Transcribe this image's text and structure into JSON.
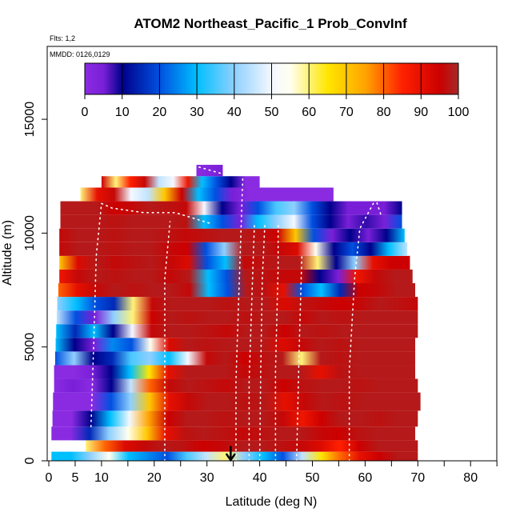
{
  "chart_data": {
    "type": "heatmap",
    "title": "ATOM2 Northeast_Pacific_1 Prob_ConvInf",
    "subtitles": [
      "Flts: 1,2",
      "MMDD: 0126,0129"
    ],
    "xlabel": "Latitude (deg N)",
    "ylabel": "Altitude (m)",
    "xlim": [
      0,
      85
    ],
    "ylim": [
      0,
      17500
    ],
    "x_tick_labels": [
      "0",
      "5",
      "10",
      "20",
      "30",
      "40",
      "50",
      "60",
      "70",
      "80"
    ],
    "x_ticks": [
      0,
      5,
      10,
      20,
      30,
      40,
      50,
      60,
      70,
      80
    ],
    "x_minor_ticks": [
      15,
      25,
      35,
      45,
      55,
      65,
      75,
      85
    ],
    "y_ticks": [
      0,
      5000,
      10000,
      15000
    ],
    "y_tick_labels": [
      "0",
      "5000",
      "10000",
      "15000"
    ],
    "colorbar": {
      "min": 0,
      "max": 100,
      "tick_values": [
        0,
        10,
        20,
        30,
        40,
        50,
        60,
        70,
        80,
        90,
        100
      ],
      "tick_labels": [
        "0",
        "10",
        "20",
        "30",
        "40",
        "50",
        "60",
        "70",
        "80",
        "90",
        "100"
      ],
      "stops": [
        {
          "v": 0,
          "c": "#8a2be2"
        },
        {
          "v": 5,
          "c": "#7a1fd8"
        },
        {
          "v": 10,
          "c": "#00008b"
        },
        {
          "v": 20,
          "c": "#0050e0"
        },
        {
          "v": 30,
          "c": "#00bfff"
        },
        {
          "v": 40,
          "c": "#8fd0ff"
        },
        {
          "v": 50,
          "c": "#f4f8ff"
        },
        {
          "v": 55,
          "c": "#fffff0"
        },
        {
          "v": 65,
          "c": "#ffe600"
        },
        {
          "v": 75,
          "c": "#ffa500"
        },
        {
          "v": 85,
          "c": "#ff2000"
        },
        {
          "v": 95,
          "c": "#cc0000"
        },
        {
          "v": 100,
          "c": "#a52a2a"
        }
      ]
    },
    "bands": [
      {
        "y0": 0,
        "y1": 400,
        "x0": 0.5,
        "x1": 70,
        "v": [
          30,
          30,
          40,
          55,
          30,
          25,
          20,
          35,
          45,
          60,
          40,
          30,
          20,
          45,
          65,
          80,
          90,
          95,
          98,
          98
        ]
      },
      {
        "y0": 400,
        "y1": 900,
        "x0": 7,
        "x1": 70,
        "v": [
          60,
          80,
          92,
          96,
          98,
          97,
          95,
          96,
          98,
          98,
          97,
          96,
          92,
          85,
          95,
          98,
          98,
          98
        ]
      },
      {
        "y0": 900,
        "y1": 1500,
        "x0": 0.5,
        "x1": 69.5,
        "v": [
          0,
          0,
          15,
          40,
          55,
          70,
          90,
          97,
          98,
          97,
          96,
          97,
          98,
          98,
          96,
          95,
          97,
          98,
          98,
          98
        ]
      },
      {
        "y0": 1500,
        "y1": 2200,
        "x0": 0.7,
        "x1": 70,
        "v": [
          0,
          0,
          10,
          30,
          50,
          75,
          95,
          98,
          98,
          97,
          98,
          98,
          96,
          88,
          95,
          98,
          98,
          97,
          98,
          98
        ]
      },
      {
        "y0": 2200,
        "y1": 3000,
        "x0": 0.8,
        "x1": 70.5,
        "v": [
          0,
          0,
          0,
          20,
          40,
          70,
          90,
          96,
          98,
          98,
          97,
          98,
          90,
          96,
          98,
          97,
          98,
          98,
          98,
          98
        ]
      },
      {
        "y0": 3000,
        "y1": 3600,
        "x0": 1,
        "x1": 70,
        "v": [
          0,
          5,
          0,
          10,
          45,
          80,
          96,
          98,
          97,
          96,
          98,
          98,
          95,
          97,
          98,
          98,
          97,
          98,
          98,
          98
        ]
      },
      {
        "y0": 3600,
        "y1": 4200,
        "x0": 1,
        "x1": 69.5,
        "v": [
          0,
          0,
          5,
          10,
          30,
          65,
          90,
          98,
          98,
          98,
          96,
          97,
          98,
          98,
          90,
          97,
          98,
          98,
          98,
          98
        ]
      },
      {
        "y0": 4200,
        "y1": 4800,
        "x0": 1.2,
        "x1": 69.5,
        "v": [
          20,
          40,
          10,
          15,
          35,
          40,
          30,
          50,
          96,
          98,
          95,
          97,
          98,
          60,
          98,
          97,
          98,
          98,
          98,
          98
        ]
      },
      {
        "y0": 4800,
        "y1": 5400,
        "x0": 1.3,
        "x1": 69.5,
        "v": [
          30,
          10,
          5,
          25,
          20,
          55,
          92,
          98,
          97,
          98,
          98,
          98,
          92,
          96,
          98,
          97,
          98,
          98,
          98,
          98
        ]
      },
      {
        "y0": 5400,
        "y1": 6000,
        "x0": 1.4,
        "x1": 70,
        "v": [
          30,
          15,
          30,
          10,
          50,
          96,
          98,
          98,
          97,
          96,
          98,
          98,
          95,
          98,
          97,
          98,
          98,
          98,
          98,
          98
        ]
      },
      {
        "y0": 6000,
        "y1": 6600,
        "x0": 1.5,
        "x1": 70,
        "v": [
          45,
          20,
          5,
          40,
          60,
          95,
          98,
          97,
          98,
          98,
          97,
          98,
          98,
          96,
          98,
          97,
          98,
          98,
          98,
          98
        ]
      },
      {
        "y0": 6600,
        "y1": 7200,
        "x0": 1.6,
        "x1": 70,
        "v": [
          40,
          30,
          20,
          15,
          60,
          96,
          98,
          98,
          98,
          97,
          98,
          98,
          92,
          97,
          96,
          95,
          96,
          98,
          97,
          96
        ]
      },
      {
        "y0": 7200,
        "y1": 7800,
        "x0": 1.8,
        "x1": 69.5,
        "v": [
          80,
          90,
          96,
          98,
          97,
          98,
          98,
          96,
          30,
          20,
          98,
          97,
          90,
          20,
          30,
          15,
          95,
          96,
          98,
          98
        ]
      },
      {
        "y0": 7800,
        "y1": 8400,
        "x0": 2,
        "x1": 69,
        "v": [
          88,
          96,
          98,
          97,
          98,
          98,
          96,
          98,
          30,
          20,
          98,
          97,
          96,
          96,
          10,
          5,
          88,
          96,
          98,
          98
        ]
      },
      {
        "y0": 8400,
        "y1": 9000,
        "x0": 2,
        "x1": 68.5,
        "v": [
          70,
          92,
          98,
          96,
          97,
          98,
          96,
          92,
          20,
          30,
          96,
          97,
          98,
          98,
          60,
          10,
          40,
          90,
          95,
          95
        ]
      },
      {
        "y0": 9000,
        "y1": 9600,
        "x0": 2,
        "x1": 68,
        "v": [
          96,
          98,
          98,
          97,
          98,
          98,
          96,
          95,
          20,
          40,
          98,
          98,
          96,
          92,
          55,
          10,
          20,
          10,
          30,
          45
        ]
      },
      {
        "y0": 9600,
        "y1": 10200,
        "x0": 2,
        "x1": 67.5,
        "v": [
          96,
          98,
          98,
          97,
          98,
          98,
          97,
          96,
          97,
          98,
          98,
          97,
          95,
          70,
          20,
          5,
          10,
          5,
          10,
          30
        ]
      },
      {
        "y0": 10200,
        "y1": 10800,
        "x0": 2.2,
        "x1": 67,
        "v": [
          98,
          98,
          98,
          97,
          98,
          98,
          98,
          97,
          30,
          20,
          5,
          30,
          40,
          50,
          20,
          10,
          5,
          8,
          5,
          20
        ]
      },
      {
        "y0": 10800,
        "y1": 11400,
        "x0": 2.2,
        "x1": 67,
        "v": [
          98,
          98,
          98,
          95,
          96,
          98,
          97,
          96,
          50,
          10,
          5,
          20,
          35,
          40,
          20,
          10,
          5,
          5,
          5,
          10
        ]
      },
      {
        "y0": 11400,
        "y1": 12000,
        "x0": 6,
        "x1": 54,
        "v": [
          60,
          90,
          96,
          50,
          45,
          70,
          95,
          30,
          20,
          5,
          0,
          0,
          0,
          0,
          0,
          0
        ]
      },
      {
        "y0": 12000,
        "y1": 12500,
        "x0": 10,
        "x1": 40,
        "v": [
          95,
          60,
          85,
          96,
          45,
          50,
          88,
          30,
          20,
          10,
          0,
          0
        ]
      },
      {
        "y0": 12500,
        "y1": 13000,
        "x0": 28,
        "x1": 33,
        "v": [
          0,
          5
        ]
      }
    ],
    "flight_tracks": [
      {
        "points": [
          [
            35.5,
            0
          ],
          [
            35.5,
            3500
          ],
          [
            36,
            7000
          ],
          [
            36.5,
            10400
          ],
          [
            36.8,
            12500
          ]
        ]
      },
      {
        "points": [
          [
            38,
            0
          ],
          [
            38,
            3500
          ],
          [
            38.5,
            7000
          ],
          [
            39,
            10400
          ]
        ]
      },
      {
        "points": [
          [
            40,
            0
          ],
          [
            40.2,
            4000
          ],
          [
            40.5,
            8000
          ],
          [
            41,
            10500
          ]
        ]
      },
      {
        "points": [
          [
            43,
            0
          ],
          [
            43,
            4000
          ],
          [
            43.5,
            8500
          ],
          [
            43.5,
            10500
          ]
        ]
      },
      {
        "points": [
          [
            47,
            0
          ],
          [
            47.5,
            5000
          ],
          [
            48,
            9000
          ]
        ]
      },
      {
        "points": [
          [
            57,
            0
          ],
          [
            57,
            4000
          ],
          [
            58,
            8000
          ],
          [
            59,
            10200
          ],
          [
            62,
            11500
          ],
          [
            63,
            10800
          ]
        ]
      },
      {
        "points": [
          [
            10,
            11300
          ],
          [
            12,
            11100
          ],
          [
            18,
            10900
          ],
          [
            24,
            10900
          ],
          [
            31,
            10400
          ]
        ]
      },
      {
        "points": [
          [
            28.5,
            12900
          ],
          [
            33,
            12600
          ]
        ]
      },
      {
        "points": [
          [
            22,
            0
          ],
          [
            22,
            5000
          ],
          [
            22,
            8000
          ],
          [
            23,
            10500
          ]
        ]
      },
      {
        "points": [
          [
            8,
            1500
          ],
          [
            8.5,
            5000
          ],
          [
            9,
            9000
          ],
          [
            10,
            11300
          ]
        ]
      }
    ],
    "arrow": {
      "lat": 34.5,
      "alt_top": 650,
      "alt_bottom": 0
    }
  }
}
